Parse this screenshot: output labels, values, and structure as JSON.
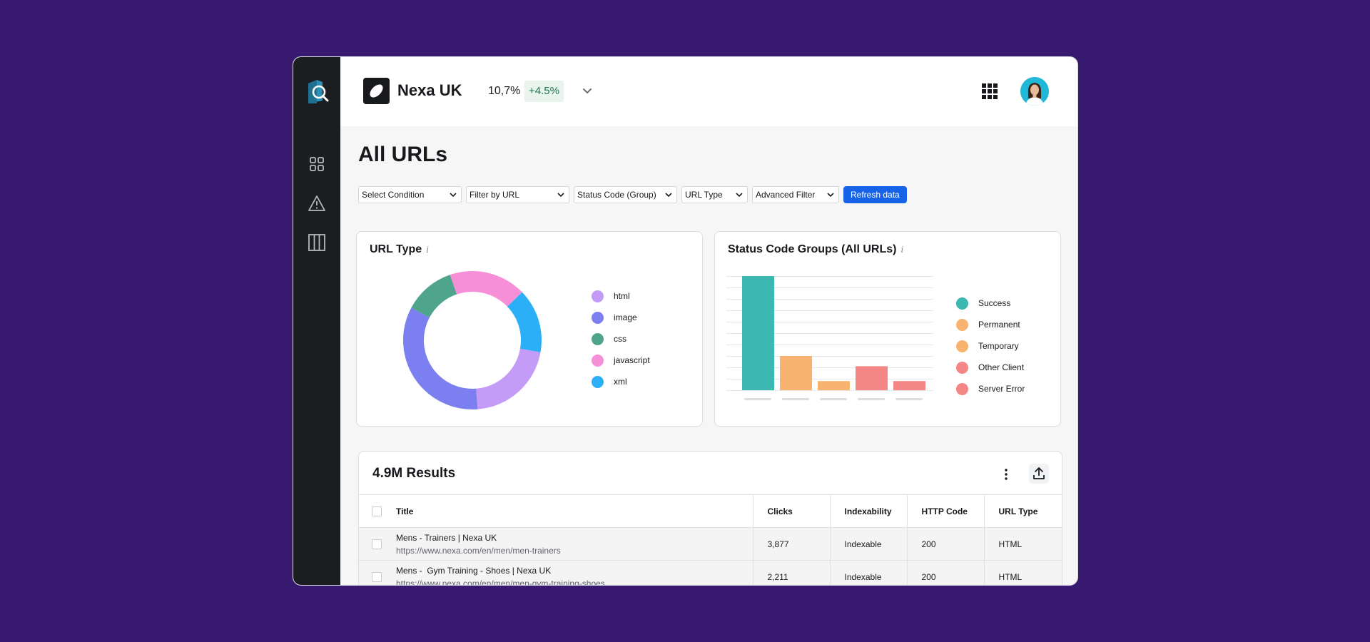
{
  "header": {
    "brand": "Nexa UK",
    "metric": "10,7%",
    "delta": "+4.5%"
  },
  "sidebar": {
    "icons": [
      "app-logo-icon",
      "dashboard-grid-icon",
      "warning-icon",
      "columns-icon"
    ]
  },
  "page": {
    "title": "All URLs"
  },
  "filters": {
    "items": [
      "Select Condition",
      "Filter by URL",
      "Status Code (Group)",
      "URL Type",
      "Advanced Filter"
    ],
    "refresh_label": "Refresh data"
  },
  "url_type_card": {
    "title": "URL Type",
    "info": "i",
    "legend": [
      {
        "label": "html",
        "color": "#c49cf7"
      },
      {
        "label": "image",
        "color": "#7b7ff0"
      },
      {
        "label": "css",
        "color": "#4fa58c"
      },
      {
        "label": "javascript",
        "color": "#f78fd8"
      },
      {
        "label": "xml",
        "color": "#2bb0f7"
      }
    ]
  },
  "status_card": {
    "title": "Status Code Groups (All URLs)",
    "info": "i",
    "legend": [
      {
        "label": "Success",
        "color": "#3bb8b0"
      },
      {
        "label": "Permanent",
        "color": "#f8b46f"
      },
      {
        "label": "Temporary",
        "color": "#f8b46f"
      },
      {
        "label": "Other Client",
        "color": "#f48686"
      },
      {
        "label": "Server Error",
        "color": "#f48686"
      }
    ]
  },
  "chart_data": [
    {
      "type": "pie",
      "title": "URL Type",
      "categories": [
        "html",
        "image",
        "css",
        "javascript",
        "xml"
      ],
      "values": [
        21,
        34,
        12,
        18,
        15
      ],
      "colors": [
        "#c49cf7",
        "#7b7ff0",
        "#4fa58c",
        "#f78fd8",
        "#2bb0f7"
      ],
      "donut": true
    },
    {
      "type": "bar",
      "title": "Status Code Groups (All URLs)",
      "categories": [
        "Success",
        "Permanent",
        "Temporary",
        "Other Client",
        "Server Error"
      ],
      "values": [
        100,
        30,
        8,
        21,
        8
      ],
      "colors": [
        "#3bb8b0",
        "#f8b46f",
        "#f8b46f",
        "#f48686",
        "#f48686"
      ],
      "ylim": [
        0,
        100
      ],
      "grid": true
    }
  ],
  "table": {
    "results": "4.9M Results",
    "columns": [
      "Title",
      "Clicks",
      "Indexability",
      "HTTP Code",
      "URL Type"
    ],
    "rows": [
      {
        "title": "Mens - Trainers | Nexa UK",
        "url": "https://www.nexa.com/en/men/men-trainers",
        "clicks": "3,877",
        "indexability": "Indexable",
        "http": "200",
        "type": "HTML"
      },
      {
        "title": "Mens -  Gym Training - Shoes | Nexa UK",
        "url": "https://www.nexa.com/en/men/men-gym-training-shoes",
        "clicks": "2,211",
        "indexability": "Indexable",
        "http": "200",
        "type": "HTML"
      }
    ]
  }
}
